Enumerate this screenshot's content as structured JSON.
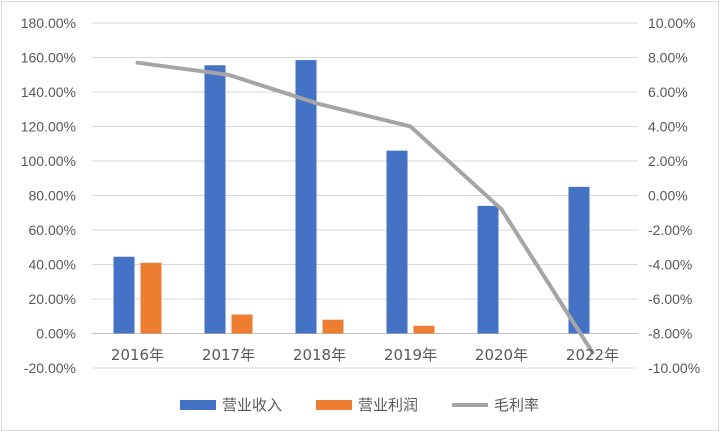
{
  "chart_data": {
    "type": "bar",
    "categories": [
      "2016年",
      "2017年",
      "2018年",
      "2019年",
      "2020年",
      "2022年"
    ],
    "series": [
      {
        "name": "营业收入",
        "kind": "bar",
        "axis": "left",
        "color": "#4472c4",
        "values": [
          44.5,
          155.5,
          158.5,
          106,
          74,
          85
        ]
      },
      {
        "name": "营业利润",
        "kind": "bar",
        "axis": "left",
        "color": "#ed7d31",
        "values": [
          41,
          11,
          8,
          4.5,
          0,
          0
        ]
      },
      {
        "name": "毛利率",
        "kind": "line",
        "axis": "right",
        "color": "#a5a5a5",
        "values": [
          7.7,
          7.0,
          5.3,
          4.0,
          -0.8,
          -9.1
        ]
      }
    ],
    "y_left": {
      "range": [
        -20,
        180
      ],
      "step": 20,
      "tick_labels": [
        "-20.00%",
        "0.00%",
        "20.00%",
        "40.00%",
        "60.00%",
        "80.00%",
        "100.00%",
        "120.00%",
        "140.00%",
        "160.00%",
        "180.00%"
      ]
    },
    "y_right": {
      "range": [
        -10,
        10
      ],
      "step": 2,
      "tick_labels": [
        "-10.00%",
        "-8.00%",
        "-6.00%",
        "-4.00%",
        "-2.00%",
        "0.00%",
        "2.00%",
        "4.00%",
        "6.00%",
        "8.00%",
        "10.00%"
      ]
    },
    "grid": true,
    "legend_position": "bottom"
  }
}
